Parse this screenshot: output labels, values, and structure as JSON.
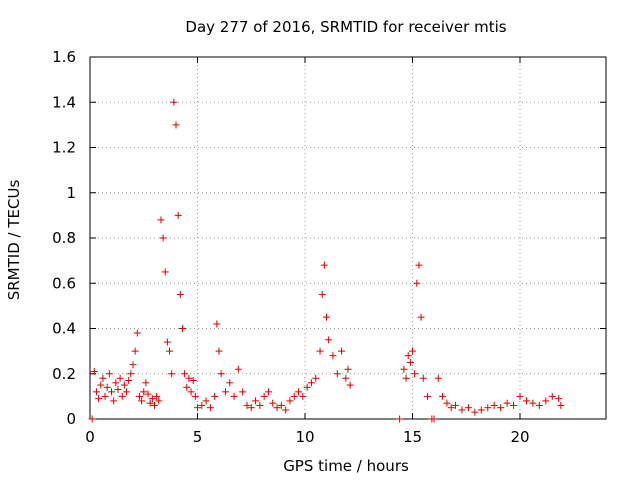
{
  "chart_data": {
    "type": "scatter",
    "title": "Day 277 of 2016, SRMTID for receiver mtis",
    "xlabel": "GPS time / hours",
    "ylabel": "SRMTID / TECUs",
    "xlim": [
      0,
      24
    ],
    "ylim": [
      0,
      1.6
    ],
    "xticks": [
      0,
      5,
      10,
      15,
      20
    ],
    "xtick_labels": [
      "0",
      "5",
      "10",
      "15",
      "20"
    ],
    "yticks": [
      0,
      0.2,
      0.4,
      0.6,
      0.8,
      1.0,
      1.2,
      1.4,
      1.6
    ],
    "ytick_labels": [
      "0",
      "0.2",
      "0.4",
      "0.6",
      "0.8",
      "1",
      "1.2",
      "1.4",
      "1.6"
    ],
    "grid": true,
    "legend": "none",
    "marker": "+",
    "color": "#dd0000",
    "series": [
      {
        "name": "SRMTID",
        "points": [
          [
            0.1,
            0.0
          ],
          [
            0.2,
            0.21
          ],
          [
            0.3,
            0.12
          ],
          [
            0.4,
            0.09
          ],
          [
            0.5,
            0.15
          ],
          [
            0.6,
            0.18
          ],
          [
            0.7,
            0.1
          ],
          [
            0.8,
            0.14
          ],
          [
            0.9,
            0.2
          ],
          [
            1.0,
            0.12
          ],
          [
            1.1,
            0.08
          ],
          [
            1.2,
            0.16
          ],
          [
            1.3,
            0.13
          ],
          [
            1.4,
            0.18
          ],
          [
            1.5,
            0.1
          ],
          [
            1.6,
            0.15
          ],
          [
            1.7,
            0.12
          ],
          [
            1.8,
            0.17
          ],
          [
            1.9,
            0.2
          ],
          [
            2.0,
            0.24
          ],
          [
            2.1,
            0.3
          ],
          [
            2.2,
            0.38
          ],
          [
            2.3,
            0.1
          ],
          [
            2.4,
            0.08
          ],
          [
            2.5,
            0.12
          ],
          [
            2.6,
            0.16
          ],
          [
            2.7,
            0.11
          ],
          [
            2.8,
            0.07
          ],
          [
            2.9,
            0.09
          ],
          [
            3.0,
            0.06
          ],
          [
            3.1,
            0.1
          ],
          [
            3.2,
            0.08
          ],
          [
            3.3,
            0.88
          ],
          [
            3.4,
            0.8
          ],
          [
            3.5,
            0.65
          ],
          [
            3.6,
            0.34
          ],
          [
            3.7,
            0.3
          ],
          [
            3.8,
            0.2
          ],
          [
            3.9,
            1.4
          ],
          [
            4.0,
            1.3
          ],
          [
            4.1,
            0.9
          ],
          [
            4.2,
            0.55
          ],
          [
            4.3,
            0.4
          ],
          [
            4.4,
            0.2
          ],
          [
            4.5,
            0.14
          ],
          [
            4.6,
            0.18
          ],
          [
            4.7,
            0.12
          ],
          [
            4.8,
            0.17
          ],
          [
            4.9,
            0.1
          ],
          [
            5.0,
            0.05
          ],
          [
            5.2,
            0.06
          ],
          [
            5.4,
            0.08
          ],
          [
            5.6,
            0.05
          ],
          [
            5.8,
            0.1
          ],
          [
            5.9,
            0.42
          ],
          [
            6.0,
            0.3
          ],
          [
            6.1,
            0.2
          ],
          [
            6.3,
            0.12
          ],
          [
            6.5,
            0.16
          ],
          [
            6.7,
            0.1
          ],
          [
            6.9,
            0.22
          ],
          [
            7.1,
            0.12
          ],
          [
            7.3,
            0.06
          ],
          [
            7.5,
            0.05
          ],
          [
            7.7,
            0.08
          ],
          [
            7.9,
            0.06
          ],
          [
            8.1,
            0.1
          ],
          [
            8.3,
            0.12
          ],
          [
            8.5,
            0.07
          ],
          [
            8.7,
            0.05
          ],
          [
            8.9,
            0.06
          ],
          [
            9.1,
            0.04
          ],
          [
            9.3,
            0.08
          ],
          [
            9.5,
            0.1
          ],
          [
            9.7,
            0.12
          ],
          [
            9.9,
            0.1
          ],
          [
            10.1,
            0.14
          ],
          [
            10.3,
            0.16
          ],
          [
            10.5,
            0.18
          ],
          [
            10.7,
            0.3
          ],
          [
            10.8,
            0.55
          ],
          [
            10.9,
            0.68
          ],
          [
            11.0,
            0.45
          ],
          [
            11.1,
            0.35
          ],
          [
            11.3,
            0.28
          ],
          [
            11.5,
            0.2
          ],
          [
            11.7,
            0.3
          ],
          [
            11.9,
            0.18
          ],
          [
            12.0,
            0.22
          ],
          [
            12.1,
            0.15
          ],
          [
            14.4,
            0.0
          ],
          [
            14.6,
            0.22
          ],
          [
            14.7,
            0.18
          ],
          [
            14.8,
            0.28
          ],
          [
            14.9,
            0.25
          ],
          [
            15.0,
            0.3
          ],
          [
            15.1,
            0.2
          ],
          [
            15.2,
            0.6
          ],
          [
            15.3,
            0.68
          ],
          [
            15.4,
            0.45
          ],
          [
            15.5,
            0.18
          ],
          [
            15.7,
            0.1
          ],
          [
            15.9,
            0.0
          ],
          [
            16.0,
            0.0
          ],
          [
            16.2,
            0.18
          ],
          [
            16.4,
            0.1
          ],
          [
            16.6,
            0.07
          ],
          [
            16.8,
            0.05
          ],
          [
            17.0,
            0.06
          ],
          [
            17.3,
            0.04
          ],
          [
            17.6,
            0.05
          ],
          [
            17.9,
            0.03
          ],
          [
            18.2,
            0.04
          ],
          [
            18.5,
            0.05
          ],
          [
            18.8,
            0.06
          ],
          [
            19.1,
            0.05
          ],
          [
            19.4,
            0.07
          ],
          [
            19.7,
            0.06
          ],
          [
            20.0,
            0.1
          ],
          [
            20.3,
            0.08
          ],
          [
            20.6,
            0.07
          ],
          [
            20.9,
            0.06
          ],
          [
            21.2,
            0.08
          ],
          [
            21.5,
            0.1
          ],
          [
            21.8,
            0.09
          ],
          [
            21.9,
            0.06
          ]
        ]
      }
    ]
  }
}
